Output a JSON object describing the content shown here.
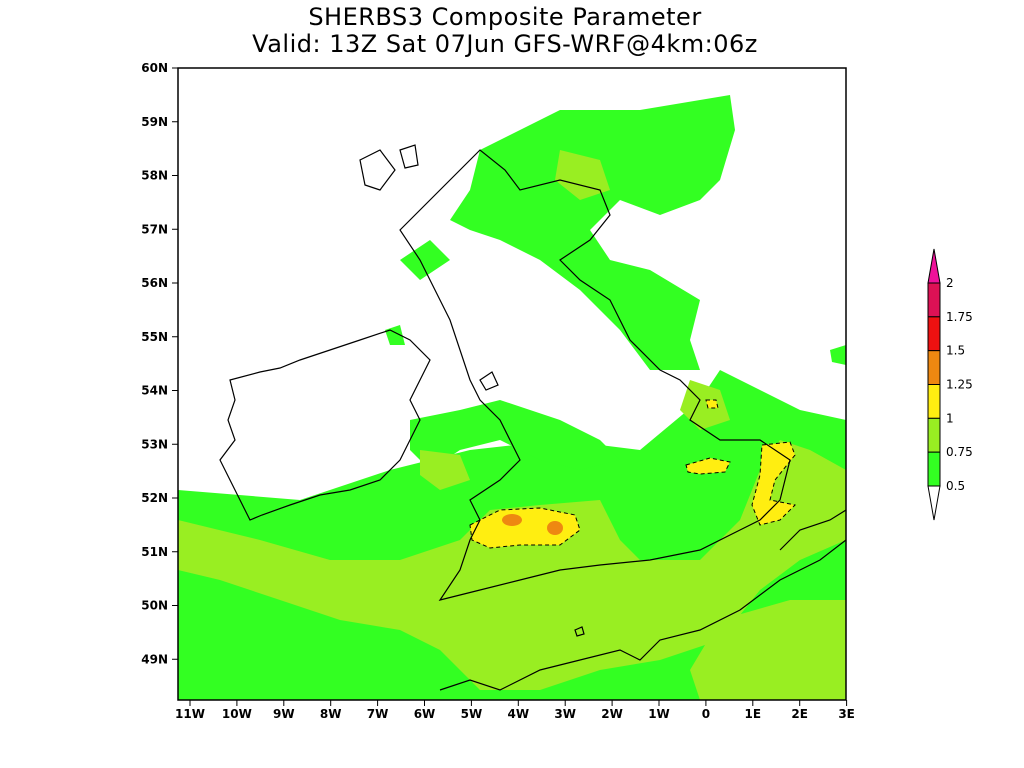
{
  "title_line1": "SHERBS3 Composite Parameter",
  "title_line2": "Valid: 13Z Sat 07Jun GFS-WRF@4km:06z",
  "lat_labels": [
    "60N",
    "59N",
    "58N",
    "57N",
    "56N",
    "55N",
    "54N",
    "53N",
    "52N",
    "51N",
    "50N",
    "49N"
  ],
  "lon_labels": [
    "11W",
    "10W",
    "9W",
    "8W",
    "7W",
    "6W",
    "5W",
    "4W",
    "3W",
    "2W",
    "1W",
    "0",
    "1E",
    "2E",
    "3E"
  ],
  "legend": {
    "levels": [
      "0.5",
      "0.75",
      "1",
      "1.25",
      "1.5",
      "1.75",
      "2"
    ],
    "colors": {
      "below": "#ffffff",
      "0.5-0.75": "#33ff22",
      "0.75-1": "#99ee22",
      "1-1.25": "#ffee11",
      "1.25-1.5": "#ee8811",
      "1.5-1.75": "#ee1111",
      "1.75-2": "#dd1155",
      "above": "#ee1199"
    }
  },
  "colors": {
    "land_outline": "#000000",
    "frame": "#000000"
  }
}
